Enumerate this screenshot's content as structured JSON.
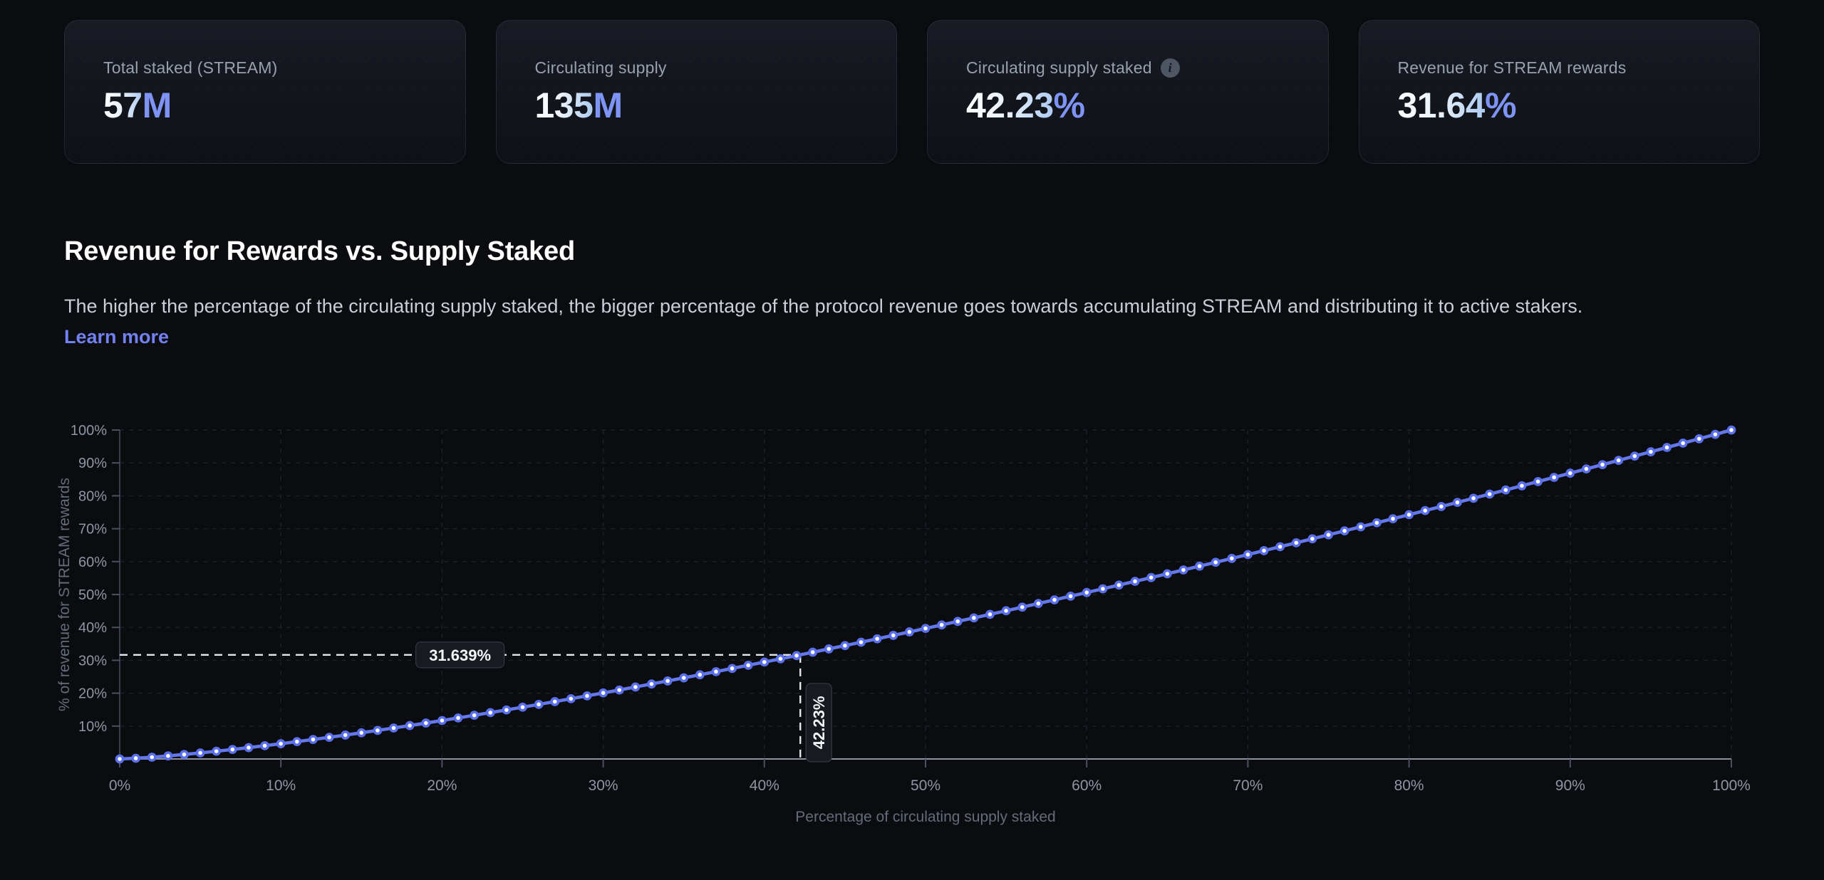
{
  "stats": [
    {
      "label": "Total staked (STREAM)",
      "value": "57",
      "suffix": "M"
    },
    {
      "label": "Circulating supply",
      "value": "135",
      "suffix": "M"
    },
    {
      "label": "Circulating supply staked",
      "value": "42.23",
      "suffix": "%"
    },
    {
      "label": "Revenue for STREAM rewards",
      "value": "31.64",
      "suffix": "%"
    }
  ],
  "section": {
    "title": "Revenue for Rewards vs. Supply Staked",
    "description": "The higher the percentage of the circulating supply staked, the bigger percentage of the protocol revenue goes towards accumulating STREAM and distributing it to active stakers.",
    "link_label": "Learn more"
  },
  "chart_data": {
    "type": "line",
    "title": "",
    "xlabel": "Percentage of circulating supply staked",
    "ylabel": "% of revenue for STREAM rewards",
    "xlim": [
      0,
      100
    ],
    "ylim": [
      0,
      100
    ],
    "grid": true,
    "grid_style": "dashed",
    "x_ticks": [
      "0%",
      "10%",
      "20%",
      "30%",
      "40%",
      "50%",
      "60%",
      "70%",
      "80%",
      "90%",
      "100%"
    ],
    "y_ticks": [
      "10%",
      "20%",
      "30%",
      "40%",
      "50%",
      "60%",
      "70%",
      "80%",
      "90%",
      "100%"
    ],
    "x": [
      0,
      1,
      2,
      3,
      4,
      5,
      6,
      7,
      8,
      9,
      10,
      11,
      12,
      13,
      14,
      15,
      16,
      17,
      18,
      19,
      20,
      21,
      22,
      23,
      24,
      25,
      26,
      27,
      28,
      29,
      30,
      31,
      32,
      33,
      34,
      35,
      36,
      37,
      38,
      39,
      40,
      41,
      42,
      43,
      44,
      45,
      46,
      47,
      48,
      49,
      50,
      51,
      52,
      53,
      54,
      55,
      56,
      57,
      58,
      59,
      60,
      61,
      62,
      63,
      64,
      65,
      66,
      67,
      68,
      69,
      70,
      71,
      72,
      73,
      74,
      75,
      76,
      77,
      78,
      79,
      80,
      81,
      82,
      83,
      84,
      85,
      86,
      87,
      88,
      89,
      90,
      91,
      92,
      93,
      94,
      95,
      96,
      97,
      98,
      99,
      100
    ],
    "series": [
      {
        "name": "% of revenue for STREAM rewards",
        "values": [
          0.0,
          0.22,
          0.54,
          0.93,
          1.37,
          1.84,
          2.35,
          2.89,
          3.45,
          4.03,
          4.64,
          5.27,
          5.92,
          6.58,
          7.27,
          7.97,
          8.68,
          9.41,
          10.16,
          10.92,
          11.69,
          12.48,
          13.28,
          14.09,
          14.91,
          15.74,
          16.59,
          17.44,
          18.31,
          19.19,
          20.08,
          20.97,
          21.88,
          22.8,
          23.72,
          24.66,
          25.6,
          26.55,
          27.52,
          28.49,
          29.46,
          30.45,
          31.44,
          32.45,
          33.46,
          34.47,
          35.5,
          36.53,
          37.57,
          38.62,
          39.69,
          40.75,
          41.82,
          42.89,
          43.97,
          45.06,
          46.16,
          47.26,
          48.37,
          49.48,
          50.61,
          51.73,
          52.87,
          54.01,
          55.15,
          56.3,
          57.46,
          58.62,
          59.79,
          60.97,
          62.15,
          63.33,
          64.53,
          65.72,
          66.93,
          68.14,
          69.35,
          70.57,
          71.8,
          73.03,
          74.27,
          75.51,
          76.75,
          78.0,
          79.26,
          80.52,
          81.78,
          83.05,
          84.33,
          85.61,
          86.89,
          88.18,
          89.48,
          90.78,
          92.08,
          93.39,
          94.7,
          96.02,
          97.34,
          98.67,
          100.0
        ]
      }
    ],
    "crosshair": {
      "x": 42.23,
      "y": 31.639,
      "x_label": "42.23%",
      "y_label": "31.639%"
    },
    "legend": "none",
    "colors": {
      "line": "#6478ec",
      "dot_fill": "#ffffff",
      "dot_stroke": "#5a6fe8",
      "axis_x": "#8b93a1",
      "axis_y": "#39404d",
      "tick": "#4a5160",
      "tick_label": "#8e95a3",
      "grid": "#1d212b",
      "reference_line": "#e3e6ec",
      "annotation_bg": "#171a21",
      "annotation_border": "#2e3340",
      "annotation_text": "#f5f6f8",
      "axis_title": "#646c7a"
    }
  }
}
